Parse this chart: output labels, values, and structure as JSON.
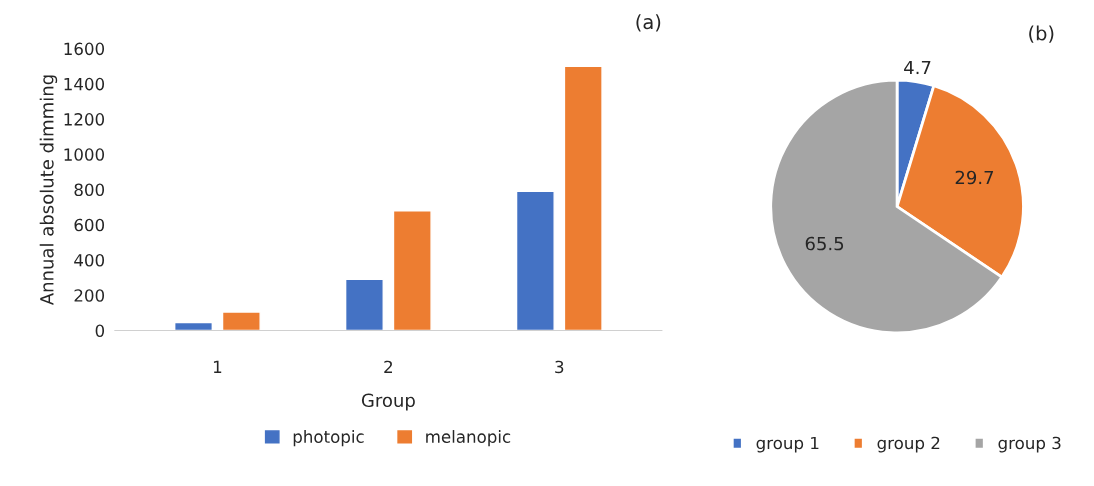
{
  "chart_data": [
    {
      "type": "bar",
      "title": "(a)",
      "xlabel": "Group",
      "ylabel": "Annual absolute dimming",
      "categories": [
        "1",
        "2",
        "3"
      ],
      "series": [
        {
          "name": "photopic",
          "color": "#4472c4",
          "values": [
            45,
            290,
            790
          ]
        },
        {
          "name": "melanopic",
          "color": "#ed7d31",
          "values": [
            105,
            680,
            1500
          ]
        }
      ],
      "ylim": [
        0,
        1600
      ],
      "yticks": [
        0,
        200,
        400,
        600,
        800,
        1000,
        1200,
        1400,
        1600
      ],
      "legend": "bottom",
      "grid": false
    },
    {
      "type": "pie",
      "title": "(b)",
      "categories": [
        "group 1",
        "group 2",
        "group 3"
      ],
      "values": [
        4.7,
        29.7,
        65.5
      ],
      "colors": [
        "#4472c4",
        "#ed7d31",
        "#a5a5a5"
      ],
      "data_labels": true,
      "legend": "bottom"
    }
  ]
}
